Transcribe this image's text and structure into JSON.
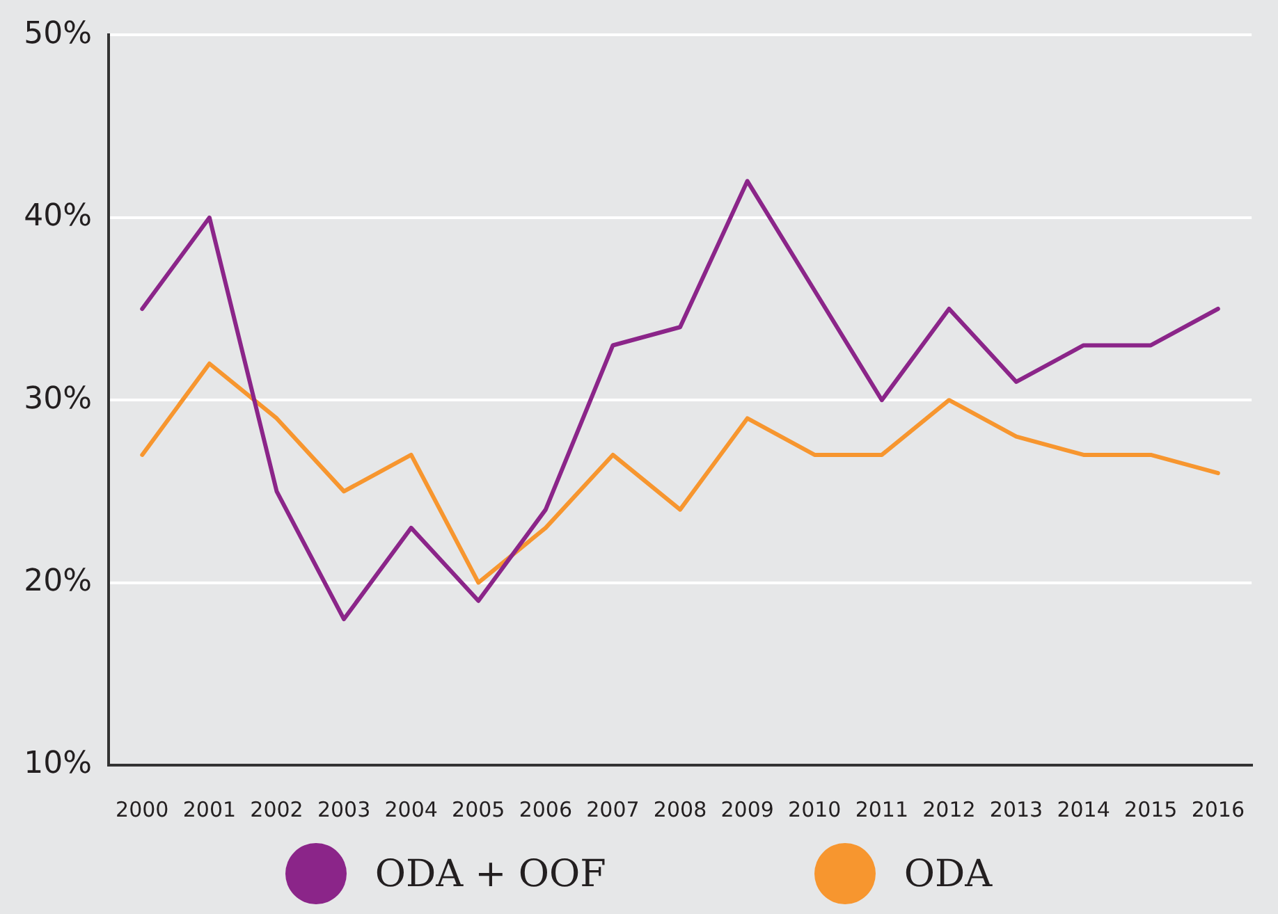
{
  "chart_data": {
    "type": "line",
    "categories": [
      "2000",
      "2001",
      "2002",
      "2003",
      "2004",
      "2005",
      "2006",
      "2007",
      "2008",
      "2009",
      "2010",
      "2011",
      "2012",
      "2013",
      "2014",
      "2015",
      "2016"
    ],
    "series": [
      {
        "name": "ODA + OOF",
        "color": "#8b2589",
        "values": [
          35,
          40,
          25,
          18,
          23,
          19,
          24,
          33,
          34,
          42,
          36,
          30,
          35,
          31,
          33,
          33,
          35
        ]
      },
      {
        "name": "ODA",
        "color": "#f7962f",
        "values": [
          27,
          32,
          29,
          25,
          27,
          20,
          23,
          27,
          24,
          29,
          27,
          27,
          30,
          28,
          27,
          27,
          26
        ]
      }
    ],
    "ylim": [
      10,
      50
    ],
    "yticks": [
      {
        "value": 10,
        "label": "10%"
      },
      {
        "value": 20,
        "label": "20%"
      },
      {
        "value": 30,
        "label": "30%"
      },
      {
        "value": 40,
        "label": "40%"
      },
      {
        "value": 50,
        "label": "50%"
      }
    ],
    "grid": "y",
    "legend": "bottom",
    "marker": "none",
    "line_style": "solid"
  }
}
